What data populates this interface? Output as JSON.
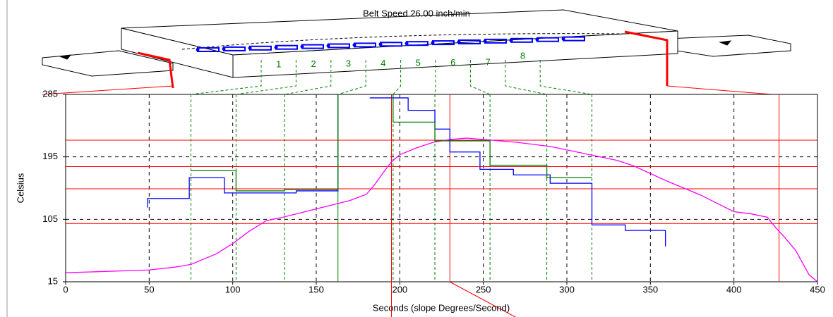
{
  "chart_data": {
    "type": "line",
    "title": "Belt Speed 26.00 inch/min",
    "x_label": "Seconds (slope Degrees/Second)",
    "y_label": "Celsius",
    "xlim": [
      0,
      450
    ],
    "ylim": [
      15,
      285
    ],
    "xticks": [
      0,
      50,
      100,
      150,
      200,
      250,
      300,
      350,
      400,
      450
    ],
    "yticks": [
      15,
      105,
      195,
      285
    ],
    "grid": true,
    "zones": [
      "1",
      "2",
      "3",
      "4",
      "5",
      "6",
      "7",
      "8"
    ],
    "zone_boundaries": [
      75,
      102,
      131,
      163,
      196,
      221,
      254,
      288,
      315
    ],
    "zone_color": "#008000",
    "limit_color": "#ff0000",
    "limit_hlines": [
      219,
      181,
      149,
      99
    ],
    "limit_vlines": [
      195,
      230,
      427
    ],
    "series": [
      {
        "name": "Profile",
        "color": "#ff00ff",
        "x": [
          0,
          50,
          65,
          75,
          90,
          100,
          110,
          120,
          130,
          140,
          150,
          160,
          170,
          180,
          185,
          190,
          195,
          200,
          210,
          220,
          230,
          240,
          250,
          270,
          290,
          310,
          330,
          340,
          360,
          380,
          400,
          410,
          420,
          425,
          430,
          437,
          445,
          450
        ],
        "values": [
          28,
          32,
          36,
          40,
          55,
          70,
          88,
          103,
          108,
          114,
          120,
          126,
          132,
          141,
          155,
          172,
          188,
          198,
          208,
          216,
          220,
          222,
          220,
          216,
          210,
          200,
          190,
          182,
          160,
          140,
          116,
          113,
          108,
          93,
          80,
          60,
          25,
          15
        ]
      },
      {
        "name": "Upper Zone",
        "color": "#0000ff",
        "x": [
          49,
          49,
          74,
          74,
          95,
          95,
          138,
          138,
          163,
          163,
          null,
          182,
          205,
          205,
          221,
          221,
          230,
          230,
          248,
          248,
          268,
          268,
          290,
          290,
          315,
          315,
          335,
          335,
          359,
          359
        ],
        "values": [
          122,
          135,
          135,
          165,
          165,
          143,
          143,
          146,
          146,
          285,
          null,
          280,
          280,
          262,
          262,
          235,
          235,
          202,
          202,
          177,
          177,
          169,
          169,
          157,
          157,
          97,
          97,
          89,
          89,
          66
        ]
      },
      {
        "name": "Lower Zone",
        "color": "#008000",
        "x": [
          75,
          102,
          102,
          131,
          131,
          163,
          163,
          null,
          196,
          196,
          221,
          221,
          254,
          254,
          288,
          288,
          315
        ],
        "values": [
          175,
          175,
          146,
          146,
          148,
          148,
          285,
          null,
          285,
          245,
          245,
          218,
          218,
          183,
          183,
          165,
          165
        ]
      }
    ]
  }
}
